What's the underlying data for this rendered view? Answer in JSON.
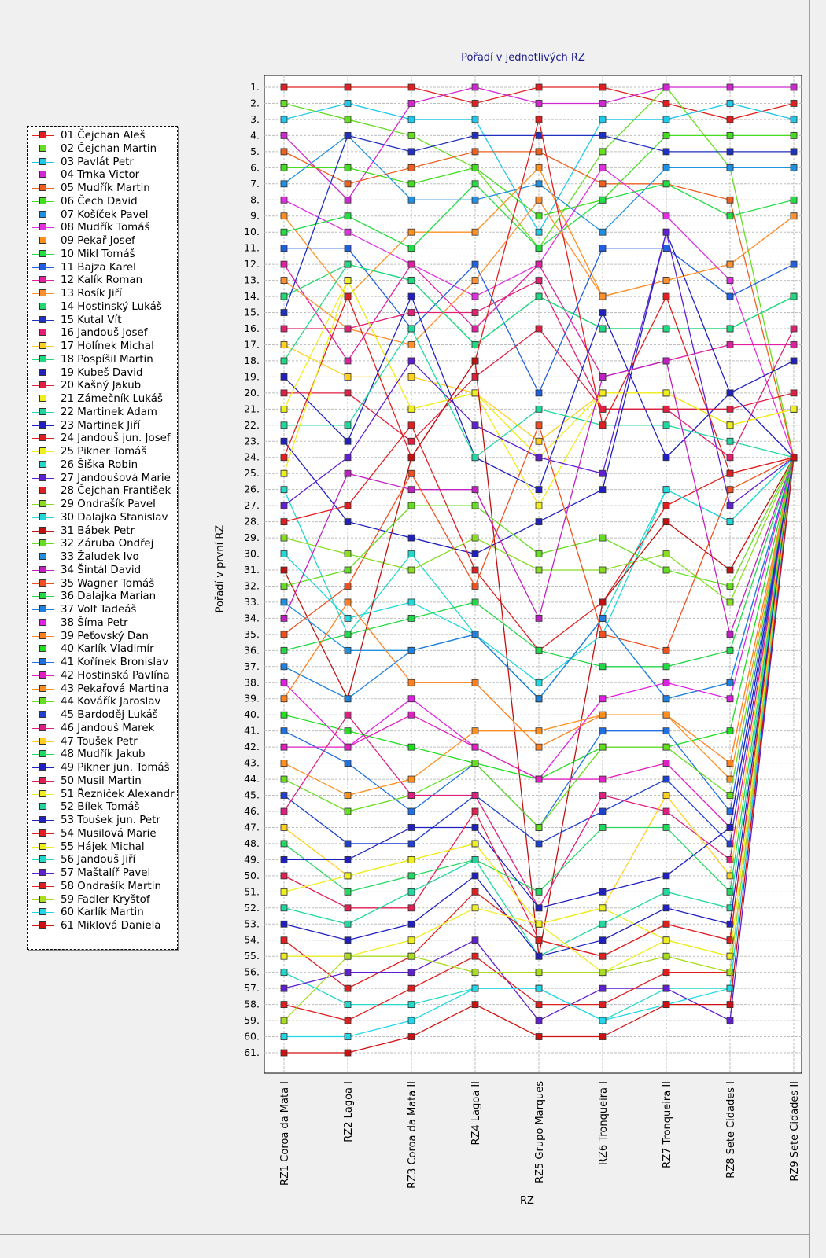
{
  "chart_data": {
    "type": "line",
    "title": "Pořadí v jednotlivých RZ",
    "xlabel": "RZ",
    "ylabel": "Pořadí v první RZ",
    "categories": [
      "RZ1 Coroa da Mata I",
      "RZ2 Lagoa I",
      "RZ3 Coroa da Mata II",
      "RZ4 Lagoa II",
      "RZ5 Grupo Marques",
      "RZ6 Tronqueira I",
      "RZ7 Tronqueira II",
      "RZ8 Sete Cidades I",
      "RZ9 Sete Cidades II"
    ],
    "y_ticks": [
      "1.",
      "2.",
      "3.",
      "4.",
      "5.",
      "6.",
      "7.",
      "8.",
      "9.",
      "10.",
      "11.",
      "12.",
      "13.",
      "14.",
      "15.",
      "16.",
      "17.",
      "18.",
      "19.",
      "20.",
      "21.",
      "22.",
      "23.",
      "24.",
      "25.",
      "26.",
      "27.",
      "28.",
      "29.",
      "30.",
      "31.",
      "32.",
      "33.",
      "34.",
      "35.",
      "36.",
      "37.",
      "38.",
      "39.",
      "40.",
      "41.",
      "42.",
      "43.",
      "44.",
      "45.",
      "46.",
      "47.",
      "48.",
      "49.",
      "50.",
      "51.",
      "52.",
      "53.",
      "54.",
      "55.",
      "56.",
      "57.",
      "58.",
      "59.",
      "60.",
      "61."
    ],
    "ylim": [
      1,
      61
    ],
    "y_inverted": true,
    "grid": true,
    "legend_position": "left",
    "series": [
      {
        "name": "01 Čejchan Aleš",
        "color": "#e02020",
        "values": [
          1,
          1,
          1,
          2,
          1,
          1,
          2,
          3,
          2
        ]
      },
      {
        "name": "02 Čejchan Martin",
        "color": "#66dd22",
        "values": [
          2,
          3,
          4,
          6,
          11,
          5,
          1,
          6,
          24
        ]
      },
      {
        "name": "03 Pavlát Petr",
        "color": "#22c8e8",
        "values": [
          3,
          2,
          3,
          3,
          10,
          3,
          3,
          2,
          3
        ]
      },
      {
        "name": "04 Trnka Victor",
        "color": "#d028d0",
        "values": [
          4,
          8,
          2,
          1,
          2,
          2,
          1,
          1,
          1
        ]
      },
      {
        "name": "05 Mudřík Martin",
        "color": "#ee6020",
        "values": [
          5,
          7,
          6,
          5,
          5,
          7,
          7,
          8,
          24
        ]
      },
      {
        "name": "06 Čech David",
        "color": "#44dd22",
        "values": [
          6,
          6,
          7,
          6,
          9,
          8,
          4,
          4,
          4
        ]
      },
      {
        "name": "07 Košíček Pavel",
        "color": "#2090e0",
        "values": [
          7,
          4,
          8,
          8,
          7,
          10,
          6,
          6,
          6
        ]
      },
      {
        "name": "08 Mudřík Tomáš",
        "color": "#e030e0",
        "values": [
          8,
          10,
          12,
          14,
          12,
          6,
          9,
          13,
          24
        ]
      },
      {
        "name": "09 Pekař Josef",
        "color": "#ff9020",
        "values": [
          9,
          14,
          10,
          10,
          6,
          14,
          13,
          12,
          9
        ]
      },
      {
        "name": "10 Mikl Tomáš",
        "color": "#22dd44",
        "values": [
          10,
          9,
          11,
          7,
          11,
          8,
          7,
          9,
          8
        ]
      },
      {
        "name": "11 Bajza Karel",
        "color": "#2060e0",
        "values": [
          11,
          11,
          16,
          12,
          20,
          11,
          11,
          14,
          12
        ]
      },
      {
        "name": "12 Kalík Roman",
        "color": "#e020a0",
        "values": [
          12,
          18,
          12,
          16,
          12,
          19,
          18,
          17,
          17
        ]
      },
      {
        "name": "13 Rosík Jiří",
        "color": "#ff9030",
        "values": [
          13,
          16,
          17,
          13,
          8,
          14,
          13,
          12,
          9
        ]
      },
      {
        "name": "14 Hostinský Lukáš",
        "color": "#22d870",
        "values": [
          14,
          12,
          13,
          17,
          14,
          16,
          16,
          16,
          14
        ]
      },
      {
        "name": "15 Kutal Vít",
        "color": "#2030c0",
        "values": [
          15,
          4,
          5,
          4,
          4,
          4,
          5,
          5,
          5
        ]
      },
      {
        "name": "16 Jandouš Josef",
        "color": "#e02070",
        "values": [
          16,
          16,
          15,
          15,
          13,
          21,
          21,
          24,
          16
        ]
      },
      {
        "name": "17 Holínek Michal",
        "color": "#ffd020",
        "values": [
          17,
          19,
          19,
          20,
          23,
          20,
          20,
          22,
          21
        ]
      },
      {
        "name": "18 Pospíšil Martin",
        "color": "#20d880",
        "values": [
          18,
          12,
          13,
          17,
          14,
          16,
          16,
          16,
          14
        ]
      },
      {
        "name": "19 Kubeš David",
        "color": "#2020c0",
        "values": [
          19,
          23,
          14,
          24,
          26,
          15,
          24,
          20,
          24
        ]
      },
      {
        "name": "20 Kašný Jakub",
        "color": "#e02040",
        "values": [
          20,
          20,
          23,
          19,
          16,
          21,
          21,
          21,
          20
        ]
      },
      {
        "name": "21 Zámečník Lukáš",
        "color": "#eeee20",
        "values": [
          21,
          13,
          21,
          20,
          24,
          20,
          20,
          22,
          21
        ]
      },
      {
        "name": "22 Martinek Adam",
        "color": "#22d8a0",
        "values": [
          22,
          22,
          16,
          24,
          21,
          22,
          22,
          23,
          24
        ]
      },
      {
        "name": "23 Martinek Jiří",
        "color": "#2020c0",
        "values": [
          23,
          28,
          29,
          30,
          28,
          26,
          10,
          20,
          18
        ]
      },
      {
        "name": "24 Jandouš jun. Josef",
        "color": "#e02020",
        "values": [
          24,
          14,
          24,
          18,
          3,
          22,
          14,
          25,
          24
        ]
      },
      {
        "name": "25 Pikner Tomáš",
        "color": "#eeee20",
        "values": [
          25,
          13,
          21,
          20,
          27,
          20,
          20,
          22,
          21
        ]
      },
      {
        "name": "26 Šiška Robin",
        "color": "#22d8c8",
        "values": [
          26,
          35,
          30,
          35,
          39,
          34,
          26,
          28,
          24
        ]
      },
      {
        "name": "27 Jandoušová Marie",
        "color": "#6020d0",
        "values": [
          27,
          24,
          18,
          22,
          24,
          25,
          10,
          27,
          24
        ]
      },
      {
        "name": "28 Čejchan František",
        "color": "#e02020",
        "values": [
          28,
          27,
          22,
          31,
          36,
          33,
          27,
          25,
          24
        ]
      },
      {
        "name": "29 Ondrašík Pavel",
        "color": "#88dd22",
        "values": [
          29,
          30,
          31,
          29,
          31,
          31,
          30,
          33,
          24
        ]
      },
      {
        "name": "30 Dalajka Stanislav",
        "color": "#22d8d8",
        "values": [
          30,
          34,
          33,
          35,
          38,
          35,
          26,
          28,
          24
        ]
      },
      {
        "name": "31 Bábek Petr",
        "color": "#c01010",
        "values": [
          31,
          39,
          24,
          18,
          55,
          33,
          28,
          31,
          24
        ]
      },
      {
        "name": "32 Záruba Ondřej",
        "color": "#66dd22",
        "values": [
          32,
          31,
          27,
          27,
          30,
          29,
          31,
          32,
          24
        ]
      },
      {
        "name": "33 Žaludek Ivo",
        "color": "#2090e0",
        "values": [
          33,
          36,
          36,
          35,
          39,
          34,
          39,
          38,
          24
        ]
      },
      {
        "name": "34 Šintál David",
        "color": "#c020c0",
        "values": [
          34,
          25,
          26,
          26,
          34,
          19,
          18,
          35,
          24
        ]
      },
      {
        "name": "35 Wagner Tomáš",
        "color": "#ee5020",
        "values": [
          35,
          32,
          25,
          32,
          22,
          35,
          36,
          26,
          24
        ]
      },
      {
        "name": "36 Dalajka Marian",
        "color": "#22d848",
        "values": [
          36,
          35,
          34,
          33,
          36,
          37,
          37,
          36,
          24
        ]
      },
      {
        "name": "37 Volf Tadeáš",
        "color": "#2080e0",
        "values": [
          37,
          39,
          36,
          35,
          39,
          34,
          39,
          38,
          24
        ]
      },
      {
        "name": "38 Šíma Petr",
        "color": "#e020e0",
        "values": [
          38,
          42,
          39,
          42,
          44,
          39,
          38,
          39,
          24
        ]
      },
      {
        "name": "39 Peťovský Dan",
        "color": "#ff8020",
        "values": [
          39,
          33,
          38,
          38,
          42,
          40,
          40,
          43,
          24
        ]
      },
      {
        "name": "40 Karlík Vladimír",
        "color": "#22dd22",
        "values": [
          40,
          41,
          42,
          43,
          44,
          42,
          42,
          41,
          24
        ]
      },
      {
        "name": "41 Kořínek Bronislav",
        "color": "#2070e0",
        "values": [
          41,
          43,
          46,
          43,
          47,
          41,
          41,
          46,
          24
        ]
      },
      {
        "name": "42 Hostinská Pavlína",
        "color": "#e020c0",
        "values": [
          42,
          42,
          40,
          42,
          44,
          44,
          43,
          47,
          24
        ]
      },
      {
        "name": "43 Pekařová Martina",
        "color": "#ff9020",
        "values": [
          43,
          45,
          44,
          41,
          41,
          40,
          40,
          44,
          24
        ]
      },
      {
        "name": "44 Kovářík Jaroslav",
        "color": "#66dd22",
        "values": [
          44,
          46,
          45,
          43,
          47,
          42,
          42,
          45,
          24
        ]
      },
      {
        "name": "45 Bardoděj Lukáš",
        "color": "#2040d0",
        "values": [
          45,
          48,
          48,
          45,
          48,
          46,
          44,
          48,
          24
        ]
      },
      {
        "name": "46 Jandouš Marek",
        "color": "#e02080",
        "values": [
          46,
          40,
          45,
          45,
          52,
          45,
          46,
          49,
          24
        ]
      },
      {
        "name": "47 Toušek Petr",
        "color": "#ffd020",
        "values": [
          47,
          50,
          49,
          48,
          53,
          52,
          45,
          50,
          24
        ]
      },
      {
        "name": "48 Mudřík Jakub",
        "color": "#22d860",
        "values": [
          48,
          51,
          50,
          49,
          51,
          47,
          47,
          51,
          24
        ]
      },
      {
        "name": "49 Pikner jun. Tomáš",
        "color": "#2020c0",
        "values": [
          49,
          49,
          47,
          47,
          52,
          51,
          50,
          47,
          24
        ]
      },
      {
        "name": "50 Musil Martin",
        "color": "#e02050",
        "values": [
          50,
          52,
          52,
          46,
          54,
          55,
          53,
          54,
          24
        ]
      },
      {
        "name": "51 Řezníček Alexandr",
        "color": "#eeee20",
        "values": [
          51,
          50,
          49,
          48,
          53,
          52,
          54,
          55,
          24
        ]
      },
      {
        "name": "52 Bílek Tomáš",
        "color": "#22d8a0",
        "values": [
          52,
          53,
          51,
          49,
          55,
          53,
          51,
          52,
          24
        ]
      },
      {
        "name": "53 Toušek jun. Petr",
        "color": "#2020c0",
        "values": [
          53,
          54,
          53,
          50,
          55,
          54,
          52,
          53,
          24
        ]
      },
      {
        "name": "54 Musilová Marie",
        "color": "#e02020",
        "values": [
          54,
          57,
          55,
          51,
          54,
          55,
          53,
          54,
          24
        ]
      },
      {
        "name": "55 Hájek Michal",
        "color": "#eeee20",
        "values": [
          55,
          55,
          54,
          52,
          53,
          56,
          54,
          55,
          24
        ]
      },
      {
        "name": "56 Jandouš Jiří",
        "color": "#22d8c8",
        "values": [
          56,
          58,
          58,
          57,
          57,
          59,
          57,
          57,
          24
        ]
      },
      {
        "name": "57 Maštalíř Pavel",
        "color": "#6020d0",
        "values": [
          57,
          56,
          56,
          54,
          59,
          57,
          57,
          59,
          24
        ]
      },
      {
        "name": "58 Ondrašík Martin",
        "color": "#e02020",
        "values": [
          58,
          59,
          57,
          55,
          58,
          58,
          56,
          56,
          24
        ]
      },
      {
        "name": "59 Fadler Kryštof",
        "color": "#aadd22",
        "values": [
          59,
          55,
          55,
          56,
          56,
          56,
          55,
          56,
          24
        ]
      },
      {
        "name": "60 Karlík Martin",
        "color": "#22d8e8",
        "values": [
          60,
          60,
          59,
          57,
          57,
          59,
          58,
          57,
          24
        ]
      },
      {
        "name": "61 Miklová Daniela",
        "color": "#d01010",
        "values": [
          61,
          61,
          60,
          58,
          60,
          60,
          58,
          58,
          24
        ]
      }
    ]
  }
}
